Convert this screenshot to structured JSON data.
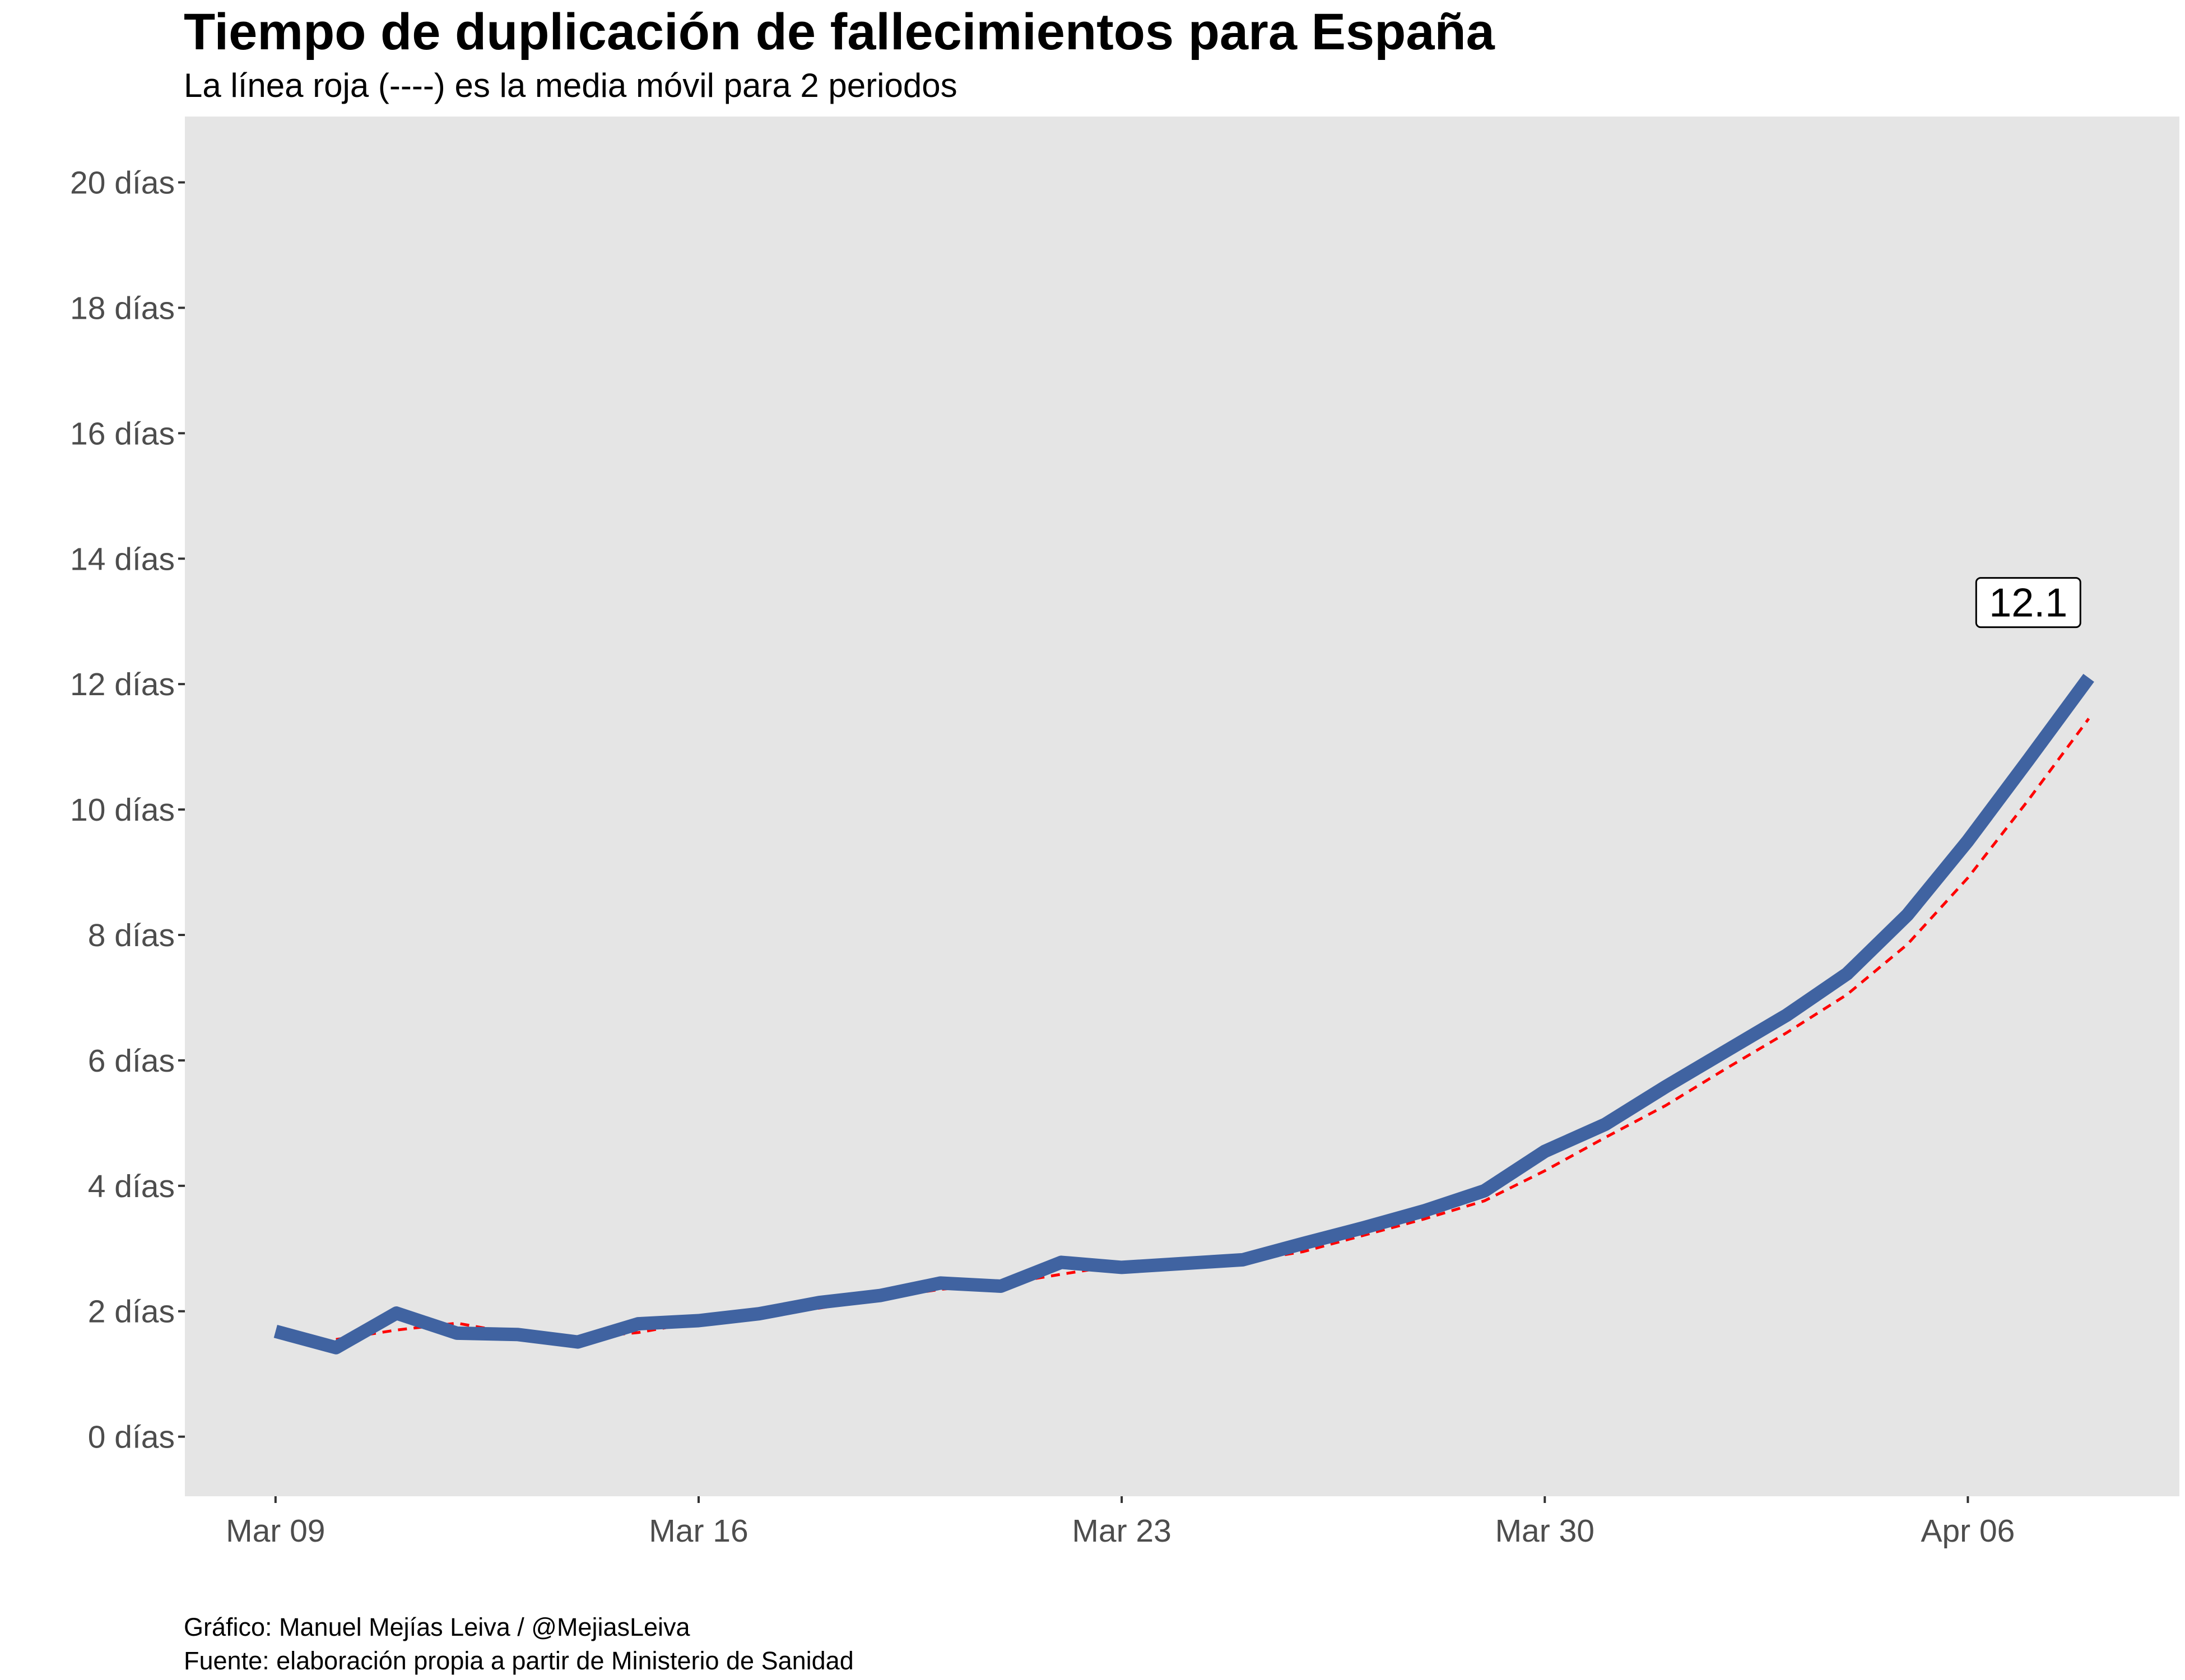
{
  "colors": {
    "panel_bg": "#e5e5e5",
    "main_line": "#4063a1",
    "moving_avg_line": "#ff0000",
    "tick_text": "#4d4d4d"
  },
  "chart_data": {
    "type": "line",
    "title": "Tiempo de duplicación de fallecimientos para España",
    "subtitle": "La línea roja (----) es la media móvil para 2 periodos",
    "xlabel": "",
    "ylabel": "",
    "x": [
      "2020-03-09",
      "2020-03-10",
      "2020-03-11",
      "2020-03-12",
      "2020-03-13",
      "2020-03-14",
      "2020-03-15",
      "2020-03-16",
      "2020-03-17",
      "2020-03-18",
      "2020-03-19",
      "2020-03-20",
      "2020-03-21",
      "2020-03-22",
      "2020-03-23",
      "2020-03-24",
      "2020-03-25",
      "2020-03-26",
      "2020-03-27",
      "2020-03-28",
      "2020-03-29",
      "2020-03-30",
      "2020-03-31",
      "2020-04-01",
      "2020-04-02",
      "2020-04-03",
      "2020-04-04",
      "2020-04-05",
      "2020-04-06",
      "2020-04-07",
      "2020-04-08"
    ],
    "series": [
      {
        "values": [
          1.68,
          1.42,
          1.97,
          1.65,
          1.63,
          1.51,
          1.8,
          1.85,
          1.96,
          2.14,
          2.25,
          2.45,
          2.4,
          2.78,
          2.7,
          2.76,
          2.82,
          3.08,
          3.33,
          3.6,
          3.92,
          4.55,
          4.98,
          5.58,
          6.15,
          6.72,
          7.38,
          8.32,
          9.5,
          10.79,
          12.1
        ]
      },
      {
        "dashed": true,
        "values": [
          null,
          1.55,
          1.7,
          1.81,
          1.64,
          1.57,
          1.66,
          1.83,
          1.91,
          2.05,
          2.2,
          2.35,
          2.43,
          2.59,
          2.74,
          2.73,
          2.79,
          2.95,
          3.21,
          3.47,
          3.76,
          4.24,
          4.77,
          5.28,
          5.87,
          6.44,
          7.05,
          7.85,
          8.91,
          10.15,
          11.45
        ]
      }
    ],
    "ylim": [
      -0.95,
      21.05
    ],
    "xlim": [
      "2020-03-07T12:00",
      "2020-04-09T12:00"
    ],
    "y_ticks": [
      0,
      2,
      4,
      6,
      8,
      10,
      12,
      14,
      16,
      18,
      20
    ],
    "y_tick_labels": [
      "0 días",
      "2 días",
      "4 días",
      "6 días",
      "8 días",
      "10 días",
      "12 días",
      "14 días",
      "16 días",
      "18 días",
      "20 días"
    ],
    "x_ticks": [
      "2020-03-09",
      "2020-03-16",
      "2020-03-23",
      "2020-03-30",
      "2020-04-06"
    ],
    "x_tick_labels": [
      "Mar 09",
      "Mar 16",
      "Mar 23",
      "Mar 30",
      "Apr 06"
    ],
    "grid": false,
    "legend": "none",
    "annotation": {
      "text": "12.1",
      "x": "2020-04-07",
      "y": 13.3
    },
    "caption": [
      "Gráfico: Manuel Mejías Leiva / @MejiasLeiva",
      "Fuente: elaboración propia a partir de Ministerio de Sanidad"
    ]
  }
}
